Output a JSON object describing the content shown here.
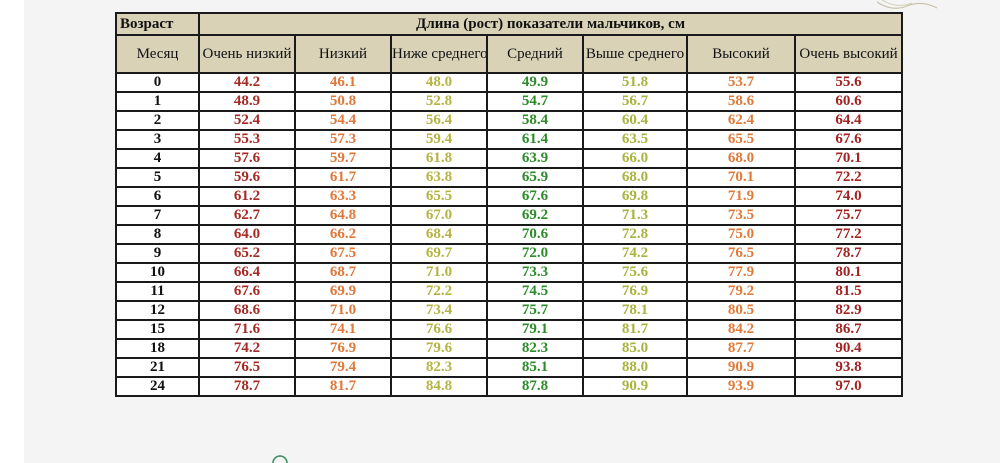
{
  "table": {
    "corner_label": "Возраст",
    "title": "Длина (рост) показатели мальчиков, см",
    "month_label": "Месяц",
    "columns": [
      {
        "label": "Очень низкий",
        "color": "#a52a24"
      },
      {
        "label": "Низкий",
        "color": "#e0783a"
      },
      {
        "label": "Ниже среднего",
        "color": "#b4b443"
      },
      {
        "label": "Средний",
        "color": "#2d8c2a"
      },
      {
        "label": "Выше среднего",
        "color": "#a9b43e"
      },
      {
        "label": "Высокий",
        "color": "#e07a38"
      },
      {
        "label": "Очень высокий",
        "color": "#a32323"
      }
    ],
    "rows": [
      {
        "month": "0",
        "values": [
          "44.2",
          "46.1",
          "48.0",
          "49.9",
          "51.8",
          "53.7",
          "55.6"
        ]
      },
      {
        "month": "1",
        "values": [
          "48.9",
          "50.8",
          "52.8",
          "54.7",
          "56.7",
          "58.6",
          "60.6"
        ]
      },
      {
        "month": "2",
        "values": [
          "52.4",
          "54.4",
          "56.4",
          "58.4",
          "60.4",
          "62.4",
          "64.4"
        ]
      },
      {
        "month": "3",
        "values": [
          "55.3",
          "57.3",
          "59.4",
          "61.4",
          "63.5",
          "65.5",
          "67.6"
        ]
      },
      {
        "month": "4",
        "values": [
          "57.6",
          "59.7",
          "61.8",
          "63.9",
          "66.0",
          "68.0",
          "70.1"
        ]
      },
      {
        "month": "5",
        "values": [
          "59.6",
          "61.7",
          "63.8",
          "65.9",
          "68.0",
          "70.1",
          "72.2"
        ]
      },
      {
        "month": "6",
        "values": [
          "61.2",
          "63.3",
          "65.5",
          "67.6",
          "69.8",
          "71.9",
          "74.0"
        ]
      },
      {
        "month": "7",
        "values": [
          "62.7",
          "64.8",
          "67.0",
          "69.2",
          "71.3",
          "73.5",
          "75.7"
        ]
      },
      {
        "month": "8",
        "values": [
          "64.0",
          "66.2",
          "68.4",
          "70.6",
          "72.8",
          "75.0",
          "77.2"
        ]
      },
      {
        "month": "9",
        "values": [
          "65.2",
          "67.5",
          "69.7",
          "72.0",
          "74.2",
          "76.5",
          "78.7"
        ]
      },
      {
        "month": "10",
        "values": [
          "66.4",
          "68.7",
          "71.0",
          "73.3",
          "75.6",
          "77.9",
          "80.1"
        ]
      },
      {
        "month": "11",
        "values": [
          "67.6",
          "69.9",
          "72.2",
          "74.5",
          "76.9",
          "79.2",
          "81.5"
        ]
      },
      {
        "month": "12",
        "values": [
          "68.6",
          "71.0",
          "73.4",
          "75.7",
          "78.1",
          "80.5",
          "82.9"
        ]
      },
      {
        "month": "15",
        "values": [
          "71.6",
          "74.1",
          "76.6",
          "79.1",
          "81.7",
          "84.2",
          "86.7"
        ]
      },
      {
        "month": "18",
        "values": [
          "74.2",
          "76.9",
          "79.6",
          "82.3",
          "85.0",
          "87.7",
          "90.4"
        ]
      },
      {
        "month": "21",
        "values": [
          "76.5",
          "79.4",
          "82.3",
          "85.1",
          "88.0",
          "90.9",
          "93.8"
        ]
      },
      {
        "month": "24",
        "values": [
          "78.7",
          "81.7",
          "84.8",
          "87.8",
          "90.9",
          "93.9",
          "97.0"
        ]
      }
    ]
  },
  "decorations": {
    "corner_icon": "ornament-icon",
    "bottom_icon": "circle-ornament-icon"
  }
}
